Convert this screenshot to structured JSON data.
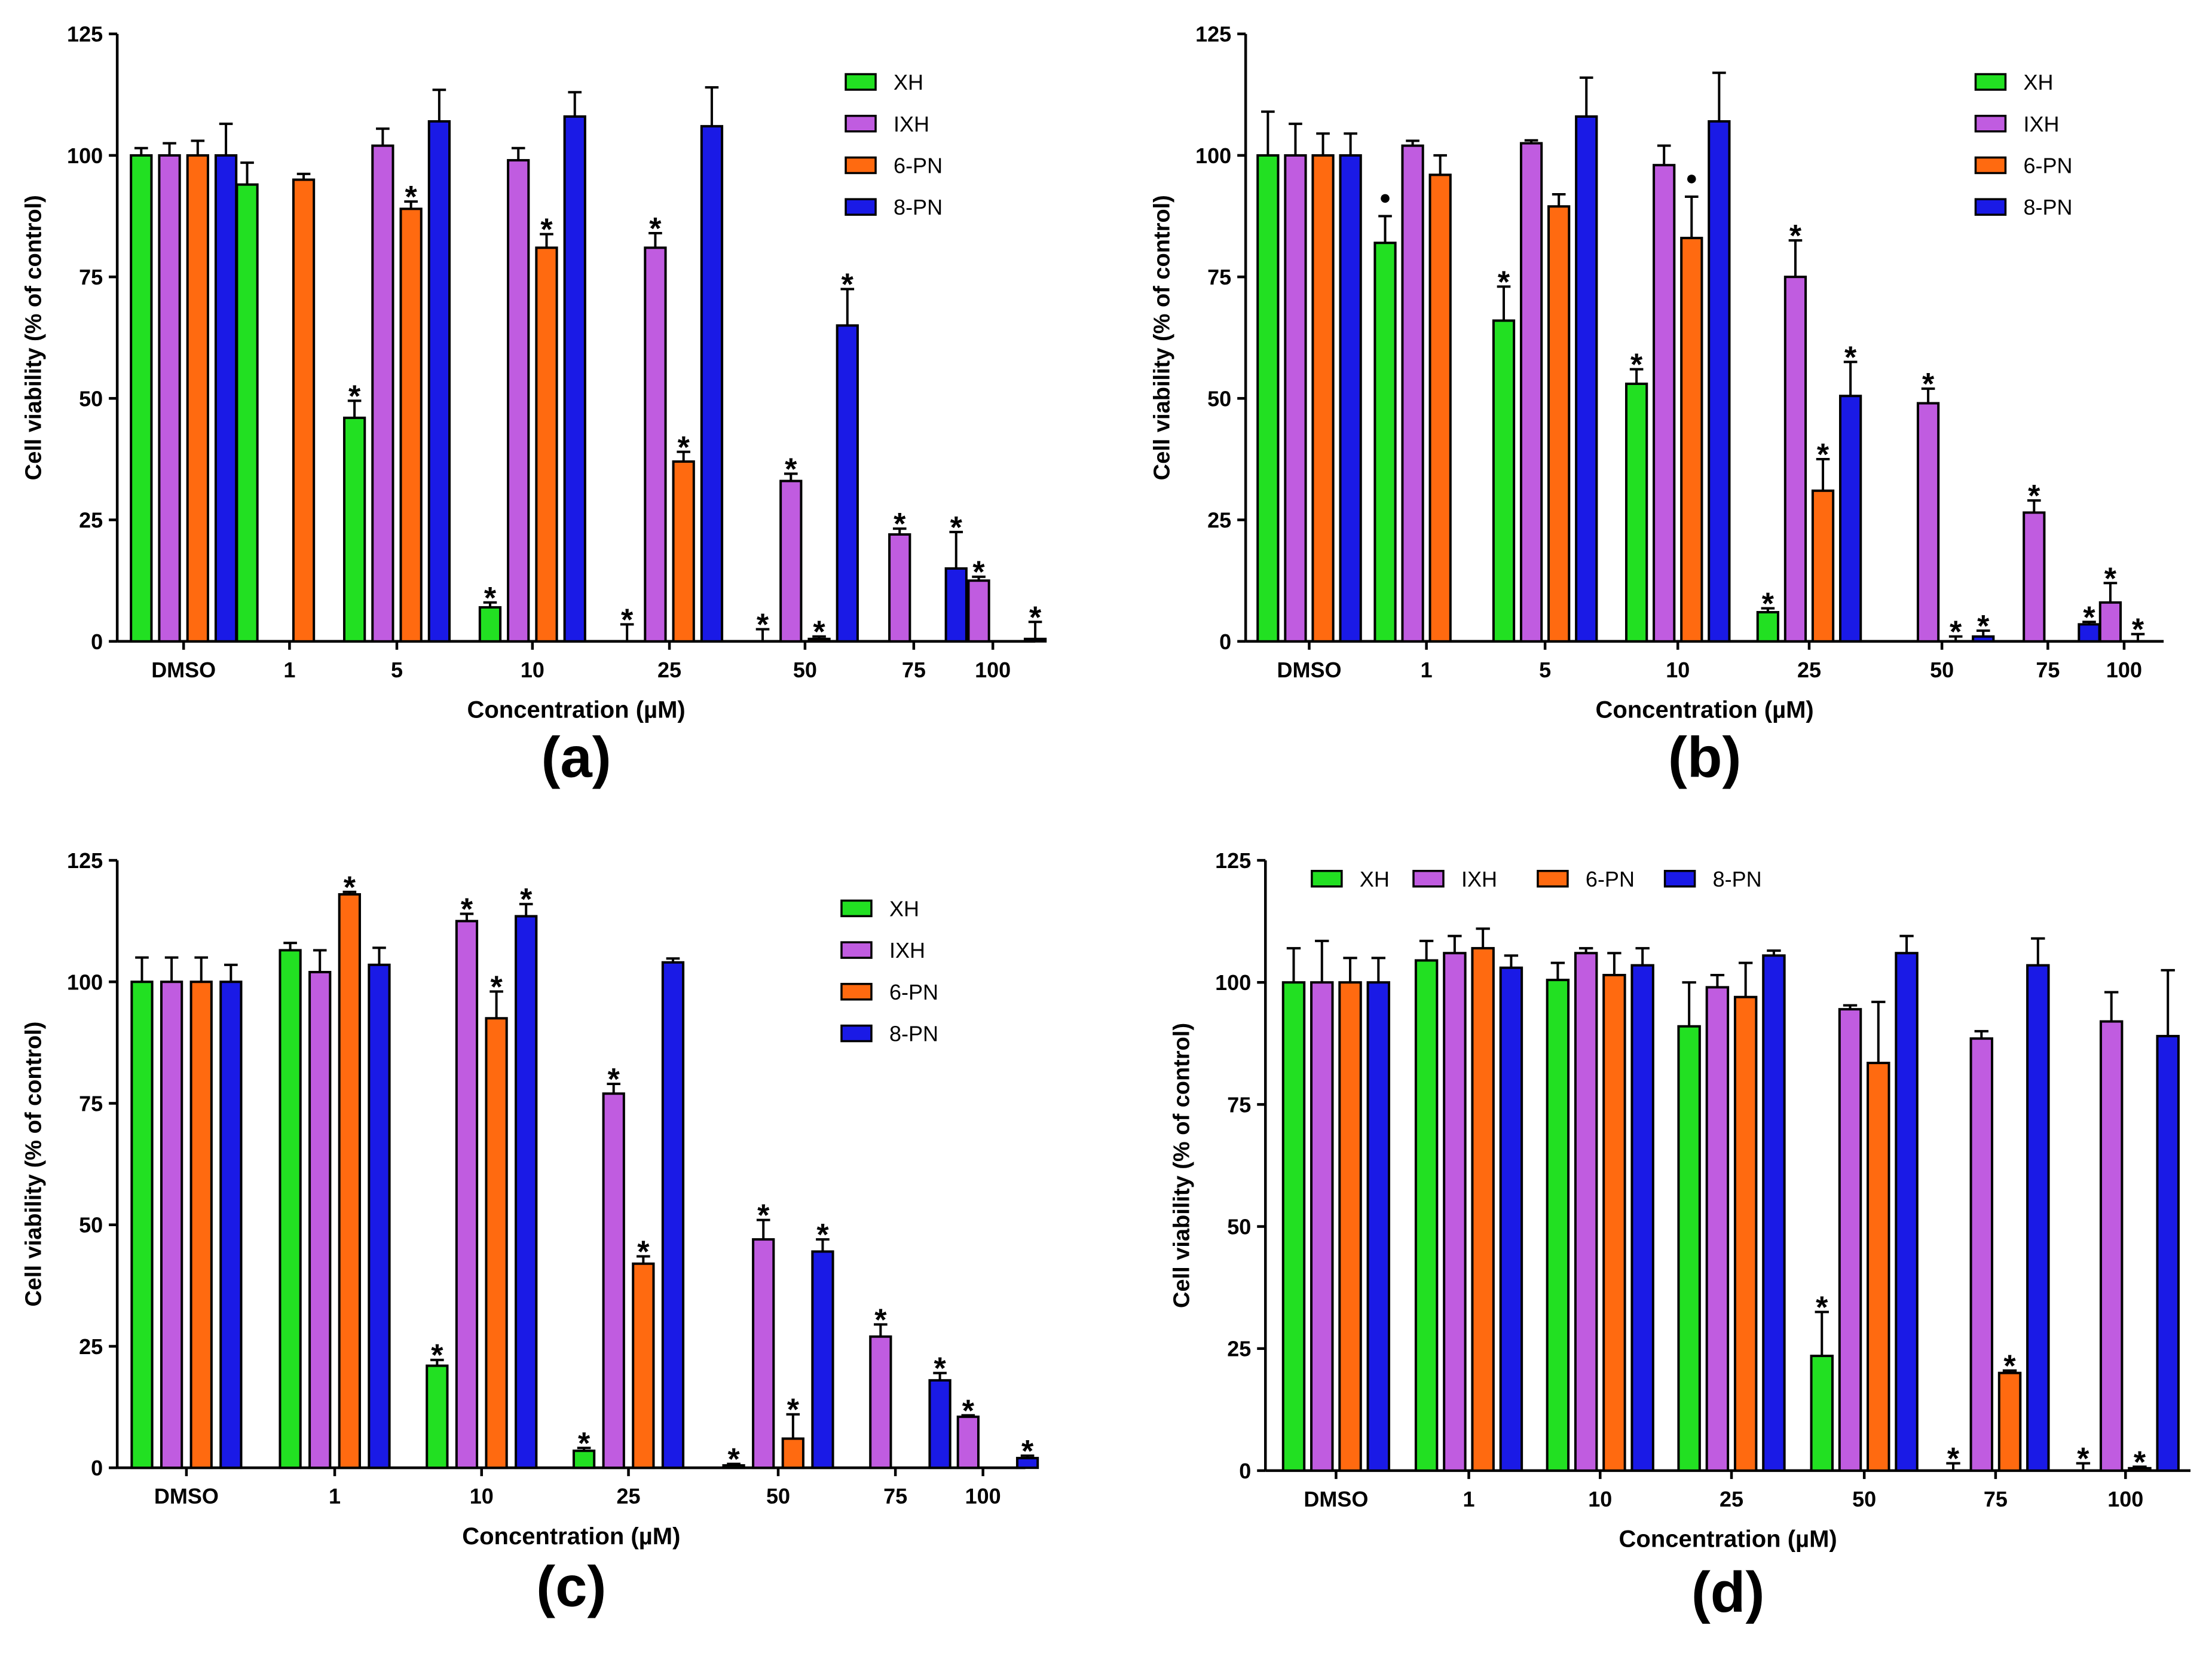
{
  "colors": {
    "XH": "#22e022",
    "IXH": "#c05ce0",
    "6-PN": "#ff6a10",
    "8-PN": "#1a1ae6",
    "axis": "#000000"
  },
  "chart_data": [
    {
      "type": "bar",
      "panel_label": "(a)",
      "xlabel": "Concentration (µM)",
      "ylabel": "Cell viability (% of control)",
      "ylim": [
        0,
        125
      ],
      "yticks": [
        "0",
        "25",
        "50",
        "75",
        "100",
        "125"
      ],
      "legend_position": "top-right-vertical",
      "categories": [
        "DMSO",
        "1",
        "5",
        "10",
        "25",
        "50",
        "75",
        "100"
      ],
      "series": [
        {
          "name": "XH",
          "values": [
            100,
            94,
            46,
            7,
            0,
            0,
            null,
            null
          ],
          "errors": [
            1.5,
            4.5,
            3.5,
            1.0,
            3.5,
            2.5,
            null,
            null
          ],
          "sig": [
            false,
            false,
            true,
            true,
            true,
            true,
            false,
            false
          ]
        },
        {
          "name": "IXH",
          "values": [
            100,
            null,
            102,
            99,
            81,
            33,
            22,
            12.5
          ],
          "errors": [
            2.5,
            null,
            3.5,
            2.5,
            3.0,
            1.5,
            1.2,
            0.8
          ],
          "sig": [
            false,
            false,
            false,
            false,
            true,
            true,
            true,
            true
          ]
        },
        {
          "name": "6-PN",
          "values": [
            100,
            95,
            89,
            81,
            37,
            0.5,
            null,
            null
          ],
          "errors": [
            3.0,
            1.2,
            1.5,
            2.8,
            2.0,
            0.5,
            null,
            null
          ],
          "sig": [
            false,
            false,
            true,
            true,
            true,
            true,
            false,
            false
          ]
        },
        {
          "name": "8-PN",
          "values": [
            100,
            null,
            107,
            108,
            106,
            65,
            15,
            0.5
          ],
          "errors": [
            6.5,
            null,
            6.5,
            5.0,
            8.0,
            7.5,
            7.5,
            3.5
          ],
          "sig": [
            false,
            false,
            false,
            false,
            false,
            true,
            true,
            true
          ]
        }
      ],
      "markers": [],
      "marker_symbols": {
        "sig": "*",
        "dot": "●"
      }
    },
    {
      "type": "bar",
      "panel_label": "(b)",
      "xlabel": "Concentration (µM)",
      "ylabel": "Cell viability (% of control)",
      "ylim": [
        0,
        125
      ],
      "yticks": [
        "0",
        "25",
        "50",
        "75",
        "100",
        "125"
      ],
      "legend_position": "top-right-vertical",
      "categories": [
        "DMSO",
        "1",
        "5",
        "10",
        "25",
        "50",
        "75",
        "100"
      ],
      "series": [
        {
          "name": "XH",
          "values": [
            100,
            82,
            66,
            53,
            6,
            null,
            null,
            null
          ],
          "errors": [
            9.0,
            5.5,
            7.0,
            3.0,
            0.8,
            null,
            null,
            null
          ],
          "sig": [
            false,
            false,
            true,
            true,
            true,
            false,
            false,
            false
          ]
        },
        {
          "name": "IXH",
          "values": [
            100,
            102,
            102.5,
            98,
            75,
            49,
            26.5,
            8
          ],
          "errors": [
            6.5,
            1.0,
            0.6,
            4.0,
            7.5,
            3.0,
            2.5,
            4.0
          ],
          "sig": [
            false,
            false,
            false,
            false,
            true,
            true,
            true,
            true
          ]
        },
        {
          "name": "6-PN",
          "values": [
            100,
            96,
            89.5,
            83,
            31,
            0,
            null,
            0
          ],
          "errors": [
            4.5,
            4.0,
            2.5,
            8.5,
            6.5,
            1.0,
            null,
            1.5
          ],
          "sig": [
            false,
            false,
            false,
            false,
            true,
            true,
            false,
            true
          ]
        },
        {
          "name": "8-PN",
          "values": [
            100,
            null,
            108,
            107,
            50.5,
            1,
            3.5,
            null
          ],
          "errors": [
            4.5,
            null,
            8.0,
            10.0,
            7.0,
            1.2,
            0.5,
            null
          ],
          "sig": [
            false,
            false,
            false,
            false,
            true,
            true,
            true,
            false
          ]
        }
      ],
      "markers": [
        {
          "category": "1",
          "series": "XH",
          "symbol": "dot"
        },
        {
          "category": "10",
          "series": "6-PN",
          "symbol": "dot"
        }
      ],
      "marker_symbols": {
        "sig": "*",
        "dot": "●"
      }
    },
    {
      "type": "bar",
      "panel_label": "(c)",
      "xlabel": "Concentration (µM)",
      "ylabel": "Cell viability (% of control)",
      "ylim": [
        0,
        125
      ],
      "yticks": [
        "0",
        "25",
        "50",
        "75",
        "100",
        "125"
      ],
      "legend_position": "top-right-vertical",
      "categories": [
        "DMSO",
        "1",
        "10",
        "25",
        "50",
        "75",
        "100"
      ],
      "series": [
        {
          "name": "XH",
          "values": [
            100,
            106.5,
            21,
            3.5,
            0.5,
            null,
            null
          ],
          "errors": [
            5.0,
            1.5,
            1.2,
            0.6,
            0.3,
            null,
            null
          ],
          "sig": [
            false,
            false,
            true,
            true,
            true,
            false,
            false
          ]
        },
        {
          "name": "IXH",
          "values": [
            100,
            102,
            112.5,
            77,
            47,
            27,
            10.5
          ],
          "errors": [
            5.0,
            4.5,
            1.5,
            2.0,
            4.0,
            2.5,
            0.3
          ],
          "sig": [
            false,
            false,
            true,
            true,
            true,
            true,
            true
          ]
        },
        {
          "name": "6-PN",
          "values": [
            100,
            118,
            92.5,
            42,
            6,
            null,
            null
          ],
          "errors": [
            5.0,
            0.5,
            5.5,
            1.5,
            5.0,
            null,
            null
          ],
          "sig": [
            false,
            true,
            true,
            true,
            true,
            false,
            false
          ]
        },
        {
          "name": "8-PN",
          "values": [
            100,
            103.5,
            113.5,
            104,
            44.5,
            18,
            2
          ],
          "errors": [
            3.5,
            3.5,
            2.5,
            0.8,
            2.5,
            1.5,
            0.5
          ],
          "sig": [
            false,
            false,
            true,
            false,
            true,
            true,
            true
          ]
        }
      ],
      "markers": [],
      "marker_symbols": {
        "sig": "*",
        "dot": "●"
      }
    },
    {
      "type": "bar",
      "panel_label": "(d)",
      "xlabel": "Concentration (µM)",
      "ylabel": "Cell viability (% of control)",
      "ylim": [
        0,
        125
      ],
      "yticks": [
        "0",
        "25",
        "50",
        "75",
        "100",
        "125"
      ],
      "legend_position": "top-horizontal",
      "categories": [
        "DMSO",
        "1",
        "10",
        "25",
        "50",
        "75",
        "100"
      ],
      "series": [
        {
          "name": "XH",
          "values": [
            100,
            104.5,
            100.5,
            91,
            23.5,
            0,
            0
          ],
          "errors": [
            7.0,
            4.0,
            3.5,
            9.0,
            9.0,
            1.5,
            1.5
          ],
          "sig": [
            false,
            false,
            false,
            false,
            true,
            true,
            true
          ]
        },
        {
          "name": "IXH",
          "values": [
            100,
            106,
            106,
            99,
            94.5,
            88.5,
            92
          ],
          "errors": [
            8.5,
            3.5,
            1.0,
            2.5,
            0.8,
            1.5,
            6.0
          ],
          "sig": [
            false,
            false,
            false,
            false,
            false,
            false,
            false
          ]
        },
        {
          "name": "6-PN",
          "values": [
            100,
            107,
            101.5,
            97,
            83.5,
            20,
            0.5
          ],
          "errors": [
            5.0,
            4.0,
            4.5,
            7.0,
            12.5,
            0.5,
            0.3
          ],
          "sig": [
            false,
            false,
            false,
            false,
            false,
            true,
            true
          ]
        },
        {
          "name": "8-PN",
          "values": [
            100,
            103,
            103.5,
            105.5,
            106,
            103.5,
            89
          ],
          "errors": [
            5.0,
            2.5,
            3.5,
            1.0,
            3.5,
            5.5,
            13.5
          ],
          "sig": [
            false,
            false,
            false,
            false,
            false,
            false,
            false
          ]
        }
      ],
      "markers": [],
      "marker_symbols": {
        "sig": "*",
        "dot": "●"
      }
    }
  ]
}
